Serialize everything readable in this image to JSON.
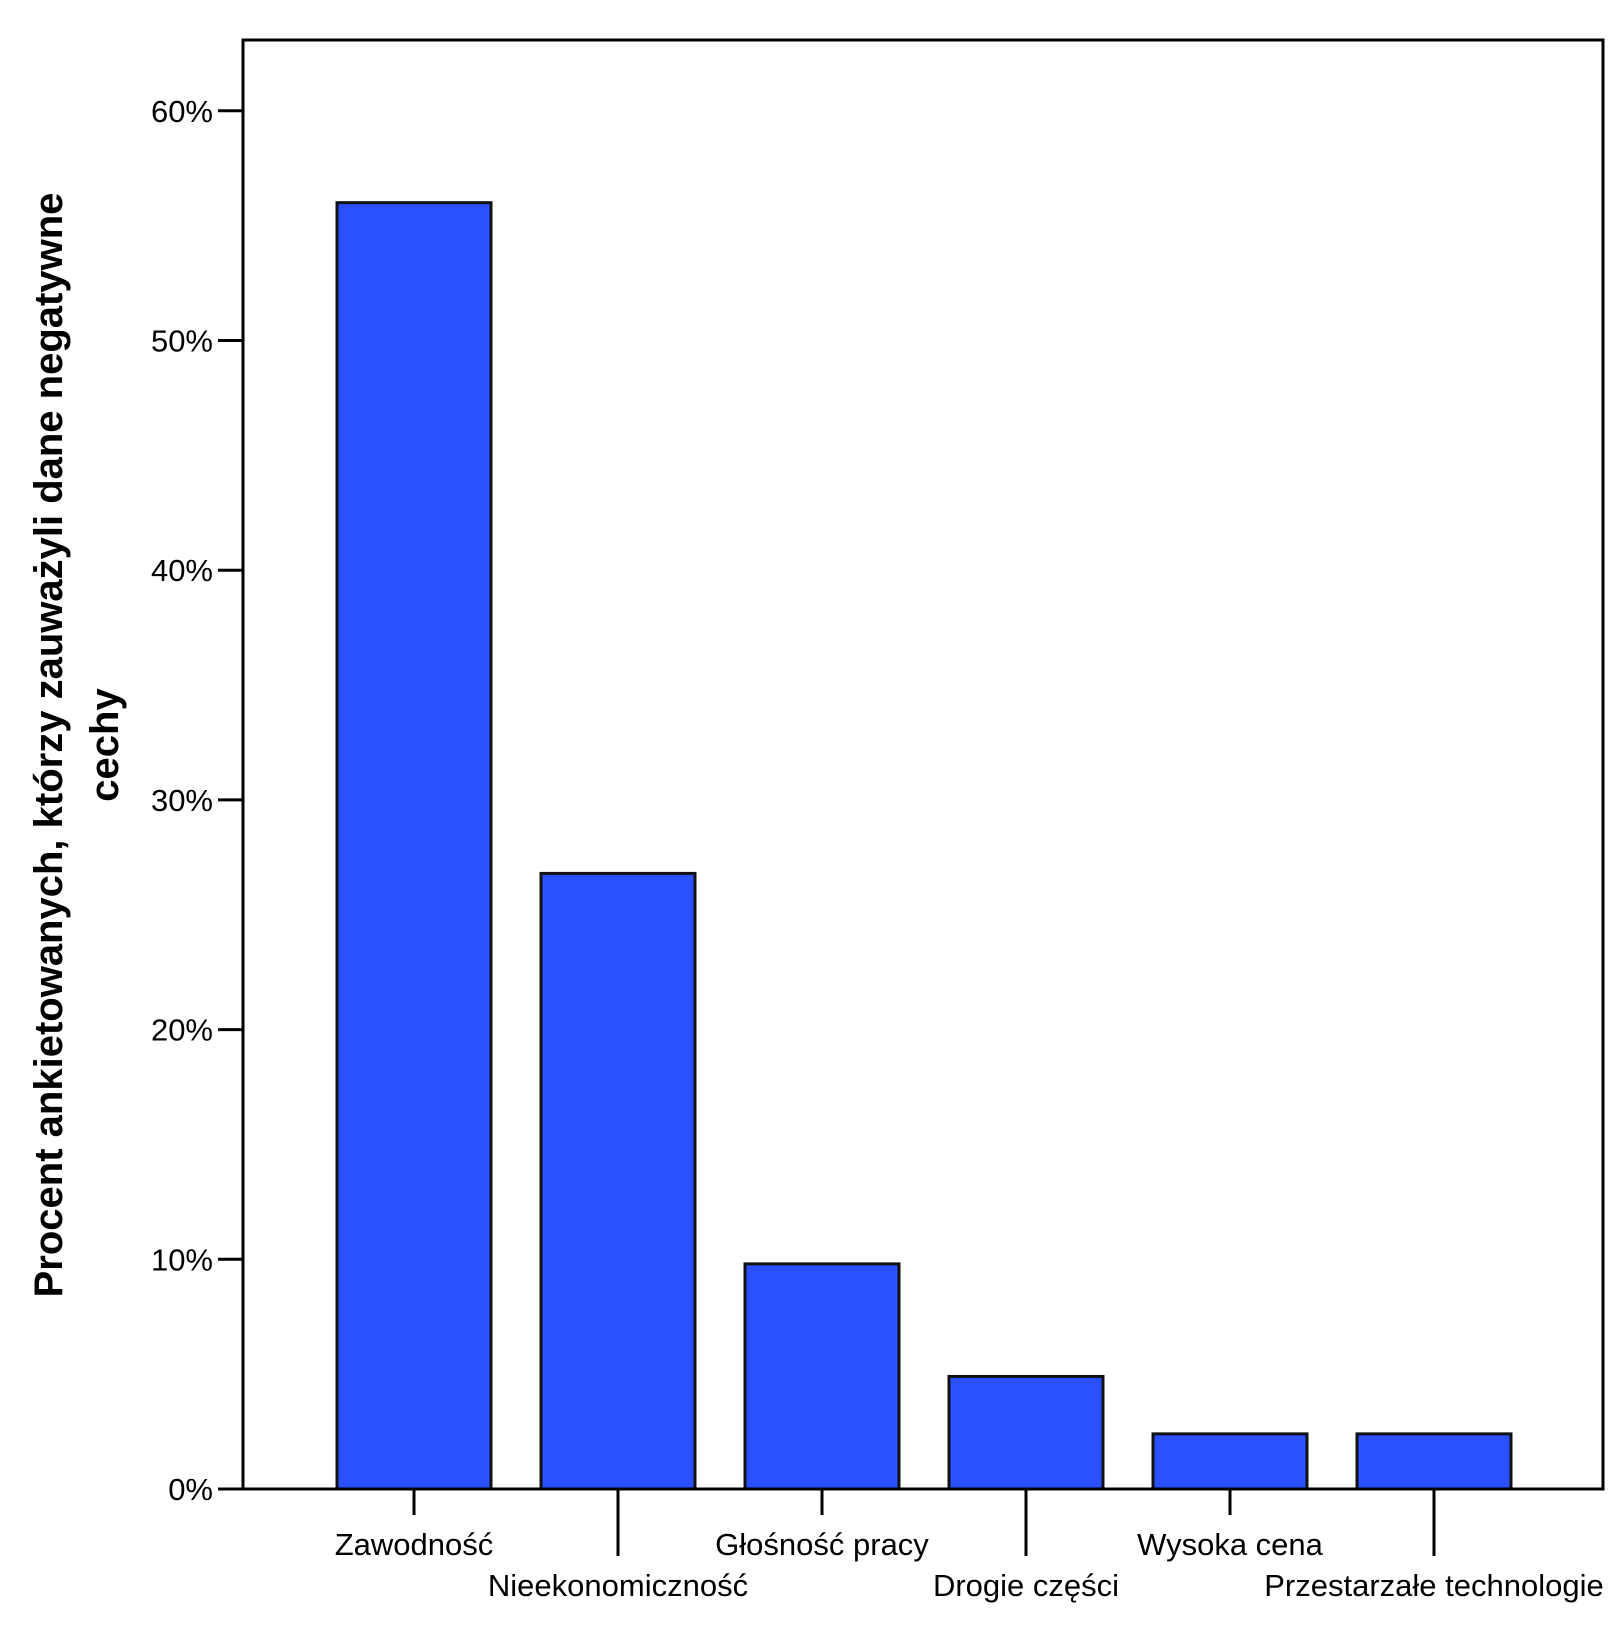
{
  "chart_data": {
    "type": "bar",
    "title": "",
    "xlabel": "",
    "ylabel": [
      "Procent ankietowanych, którzy zauważyli dane negatywne",
      "cechy"
    ],
    "categories": [
      "Zawodność",
      "Nieekonomiczność",
      "Głośność pracy",
      "Drogie części",
      "Wysoka cena",
      "Przestarzałe technologie"
    ],
    "values": [
      56,
      26.8,
      9.8,
      4.9,
      2.4,
      2.4
    ],
    "value_unit": "%",
    "ylim": [
      0,
      63
    ],
    "yticks": [
      0,
      10,
      20,
      30,
      40,
      50,
      60
    ],
    "ytick_labels": [
      "0%",
      "10%",
      "20%",
      "30%",
      "40%",
      "50%",
      "60%"
    ],
    "grid": false,
    "bar_color": "#2b50ff",
    "edge_color": "#111111"
  }
}
